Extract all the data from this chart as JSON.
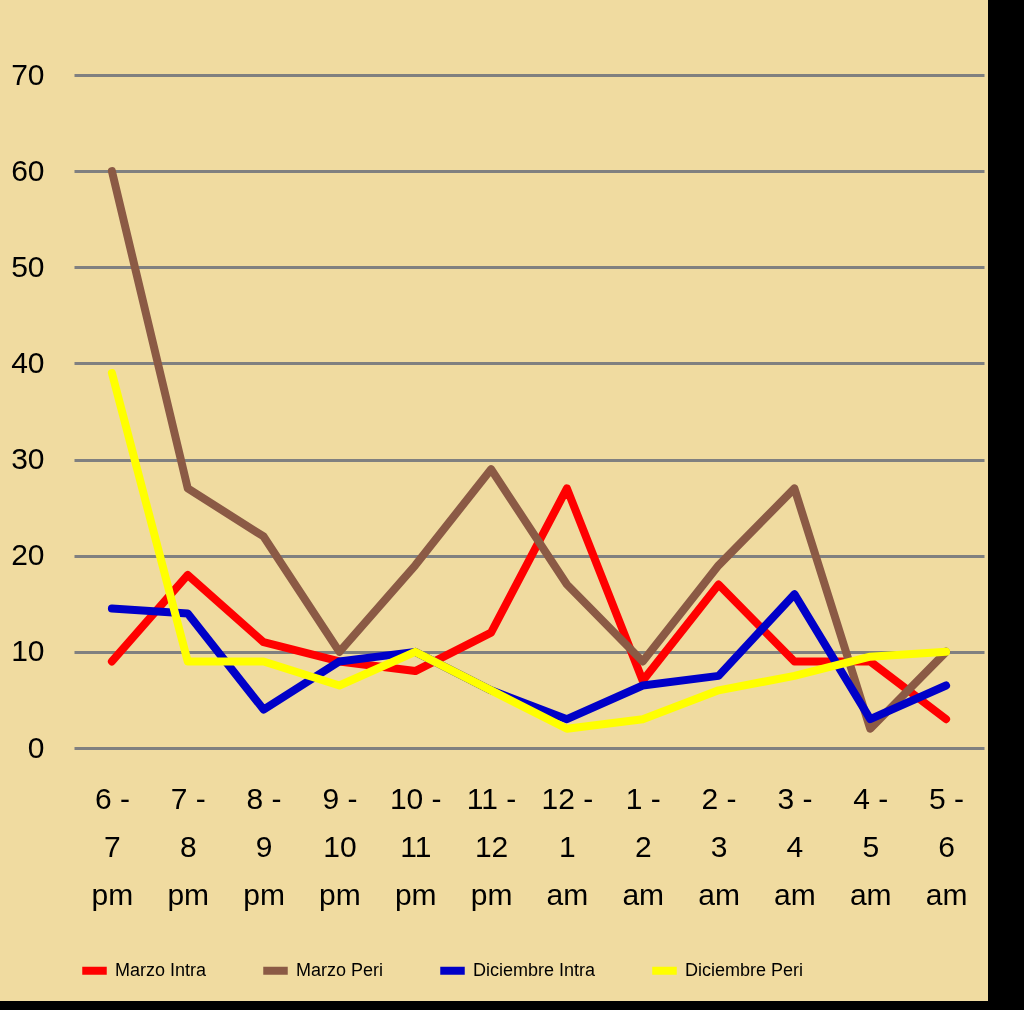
{
  "chart_data": {
    "type": "line",
    "categories": [
      "6 -\n7\npm",
      "7 -\n8\npm",
      "8 -\n9\npm",
      "9 -\n10\npm",
      "10 -\n11\npm",
      "11 -\n12\npm",
      "12 -\n1\nam",
      "1 -\n2\nam",
      "2 -\n3\nam",
      "3 -\n4\nam",
      "4 -\n5\nam",
      "5 -\n6\nam"
    ],
    "series": [
      {
        "name": "Marzo Intra",
        "color": "#ff0000",
        "values": [
          9,
          18,
          11,
          9,
          8,
          12,
          27,
          7,
          17,
          9,
          9,
          3
        ]
      },
      {
        "name": "Marzo Peri",
        "color": "#8b5a45",
        "values": [
          60,
          27,
          22,
          10,
          19,
          29,
          17,
          9,
          19,
          27,
          2,
          10
        ]
      },
      {
        "name": "Diciembre Intra",
        "color": "#0000c8",
        "values": [
          14.5,
          14,
          4,
          9,
          10,
          6,
          3,
          6.5,
          7.5,
          16,
          3,
          6.5
        ]
      },
      {
        "name": "Diciembre Peri",
        "color": "#ffff00",
        "values": [
          39,
          9,
          9,
          6.5,
          10,
          6,
          2,
          3,
          6,
          7.5,
          9.5,
          10
        ]
      }
    ],
    "ylim": [
      0,
      70
    ],
    "yticks": [
      0,
      10,
      20,
      30,
      40,
      50,
      60,
      70
    ],
    "grid": "y",
    "legend": "bottom",
    "marker": "none",
    "line_style": "solid"
  }
}
